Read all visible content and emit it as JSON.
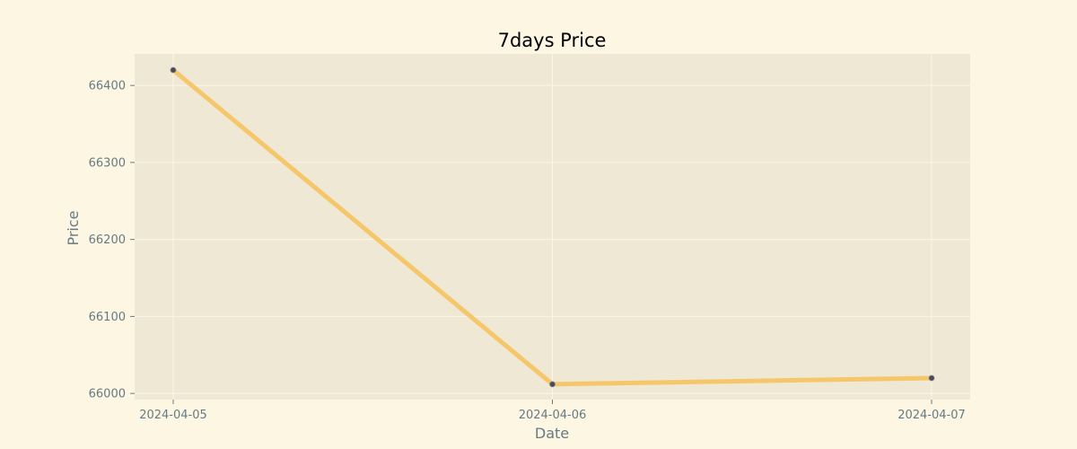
{
  "chart_data": {
    "type": "line",
    "title": "7days Price",
    "xlabel": "Date",
    "ylabel": "Price",
    "x": [
      "2024-04-05",
      "2024-04-06",
      "2024-04-07"
    ],
    "series": [
      {
        "values": [
          66420,
          66012,
          66020
        ],
        "color": "#f6c66a",
        "marker_color": "#4a4a55"
      }
    ],
    "yticks": [
      66000,
      66100,
      66200,
      66300,
      66400
    ],
    "ylim": [
      65992,
      66441
    ],
    "grid": true,
    "legend": "none",
    "plot_background": "#eee8d5",
    "page_background": "#fdf6e3"
  }
}
